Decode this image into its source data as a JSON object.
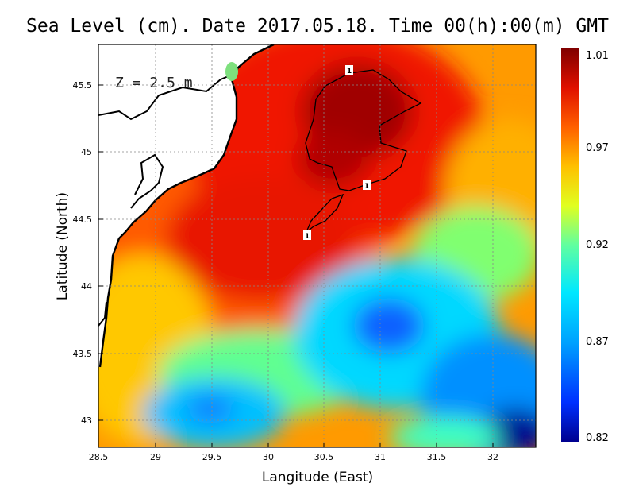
{
  "title": "Sea Level (cm). Date 2017.05.18. Time 00(h):00(m) GMT",
  "annotation": "Z = 2.5 m",
  "x_axis": {
    "label": "Langitude (East)",
    "ticks": [
      "28.5",
      "29",
      "29.5",
      "30",
      "30.5",
      "31",
      "31.5",
      "32"
    ],
    "range": [
      28.5,
      32.4
    ]
  },
  "y_axis": {
    "label": "Latitude (North)",
    "ticks": [
      "43",
      "43.5",
      "44",
      "44.5",
      "45",
      "45.5"
    ],
    "range": [
      42.8,
      45.8
    ]
  },
  "colorbar": {
    "labels": [
      "1.01",
      "0.97",
      "0.92",
      "0.87",
      "0.82"
    ],
    "min": 0.82,
    "max": 1.01,
    "colors": [
      "#00008f",
      "#0040ff",
      "#00bfff",
      "#40ffbf",
      "#bfff40",
      "#ffd000",
      "#ff8000",
      "#ff2000",
      "#a00000",
      "#800000"
    ]
  },
  "contour_label": "1",
  "chart_data": {
    "type": "heatmap",
    "title": "Sea Level (cm). Date 2017.05.18. Time 00(h):00(m) GMT",
    "xlabel": "Langitude (East)",
    "ylabel": "Latitude (North)",
    "xlim": [
      28.5,
      32.4
    ],
    "ylim": [
      42.8,
      45.8
    ],
    "value_range": [
      0.82,
      1.01
    ],
    "grid": true,
    "features": [
      {
        "name": "max",
        "lon": 30.75,
        "lat": 45.35,
        "value": 1.01
      },
      {
        "name": "min-southeast",
        "lon": 32.2,
        "lat": 42.9,
        "value": 0.82
      },
      {
        "name": "low-center",
        "lon": 31.1,
        "lat": 43.7,
        "value": 0.86
      },
      {
        "name": "low-southwest",
        "lon": 29.5,
        "lat": 43.0,
        "value": 0.87
      }
    ]
  }
}
